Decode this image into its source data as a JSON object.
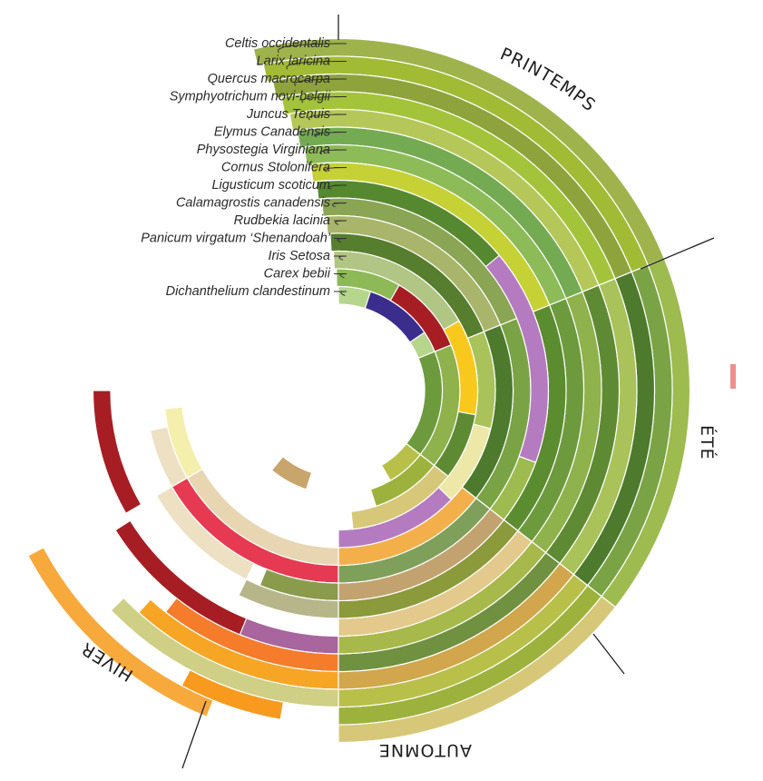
{
  "species": [
    {
      "name": "Celtis occidentalis",
      "color": "#9fb34c"
    },
    {
      "name": "Larix laricina",
      "color": "#a1bb35"
    },
    {
      "name": "Quercus macrocarpa",
      "color": "#8ea33b"
    },
    {
      "name": "Symphyotrichum novi-belgii",
      "color": "#a3c43a"
    },
    {
      "name": "Juncus Tenuis",
      "color": "#b6c75a"
    },
    {
      "name": "Elymus Canadensis",
      "color": "#74ab52"
    },
    {
      "name": "Physostegia Virginiana",
      "color": "#8dbb58"
    },
    {
      "name": "Cornus Stolonifera",
      "color": "#c6d136"
    },
    {
      "name": "Ligusticum scoticum",
      "color": "#56892f"
    },
    {
      "name": "Calamagrostis canadensis",
      "color": "#8aa553"
    },
    {
      "name": "Rudbekia lacinia",
      "color": "#a9b56a"
    },
    {
      "name": "Panicum virgatum ‘Shenandoah’",
      "color": "#577d2e"
    },
    {
      "name": "Iris Setosa",
      "color": "#b1c584"
    },
    {
      "name": "Carex bebii",
      "color": "#8db956"
    },
    {
      "name": "Dichanthelium clandestinum",
      "color": "#b6d58d"
    }
  ],
  "seasons": {
    "spring": "PRINTEMPS",
    "summer": "ÉTÉ",
    "autumn": "AUTOMNE",
    "winter": "HIVER"
  },
  "palette": {
    "summer_dark": "#4d7a2c",
    "cream": "#eee8a8",
    "purple": "#b57bc0",
    "dark_purple": "#3a2d8c",
    "crimson": "#a61e24",
    "orange": "#f9c81c",
    "winter_orange": "#f7a93c",
    "pale": "#ede0c3"
  }
}
